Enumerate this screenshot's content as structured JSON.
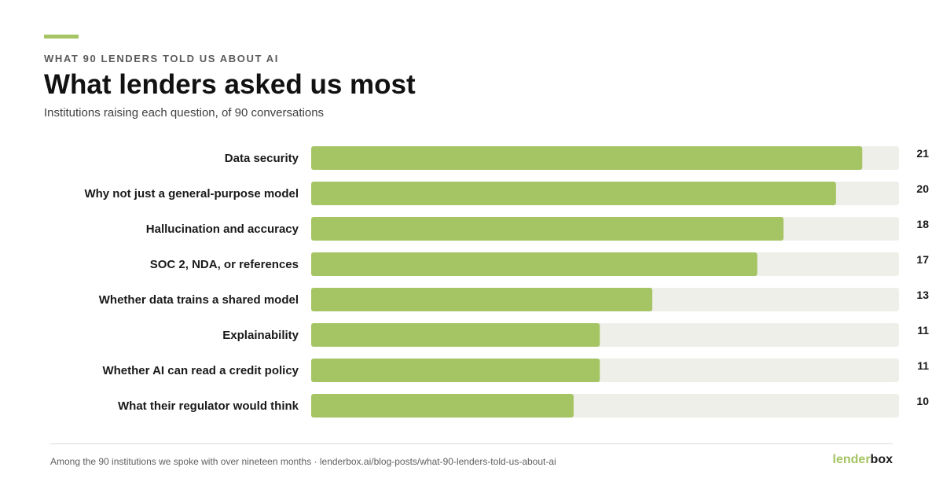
{
  "header": {
    "eyebrow": "WHAT 90 LENDERS TOLD US ABOUT AI",
    "title": "What lenders asked us most",
    "subtitle": "Institutions raising each question, of 90 conversations"
  },
  "colors": {
    "accent": "#a5c464",
    "track": "#efefea",
    "label": "#1a1a1a"
  },
  "chart_data": {
    "type": "bar",
    "orientation": "horizontal",
    "categories": [
      "Data security",
      "Why not just a general-purpose model",
      "Hallucination and accuracy",
      "SOC 2, NDA, or references",
      "Whether data trains a shared model",
      "Explainability",
      "Whether AI can read a credit policy",
      "What their regulator would think"
    ],
    "values": [
      21,
      20,
      18,
      17,
      13,
      11,
      11,
      10
    ],
    "xlim": [
      0,
      22.4
    ],
    "grid": false,
    "legend": "none",
    "xlabel": "",
    "ylabel": ""
  },
  "footer": {
    "note": "Among the 90 institutions we spoke with over nineteen months · lenderbox.ai/blog-posts/what-90-lenders-told-us-about-ai",
    "brand_part1": "lender",
    "brand_part2": "box"
  }
}
